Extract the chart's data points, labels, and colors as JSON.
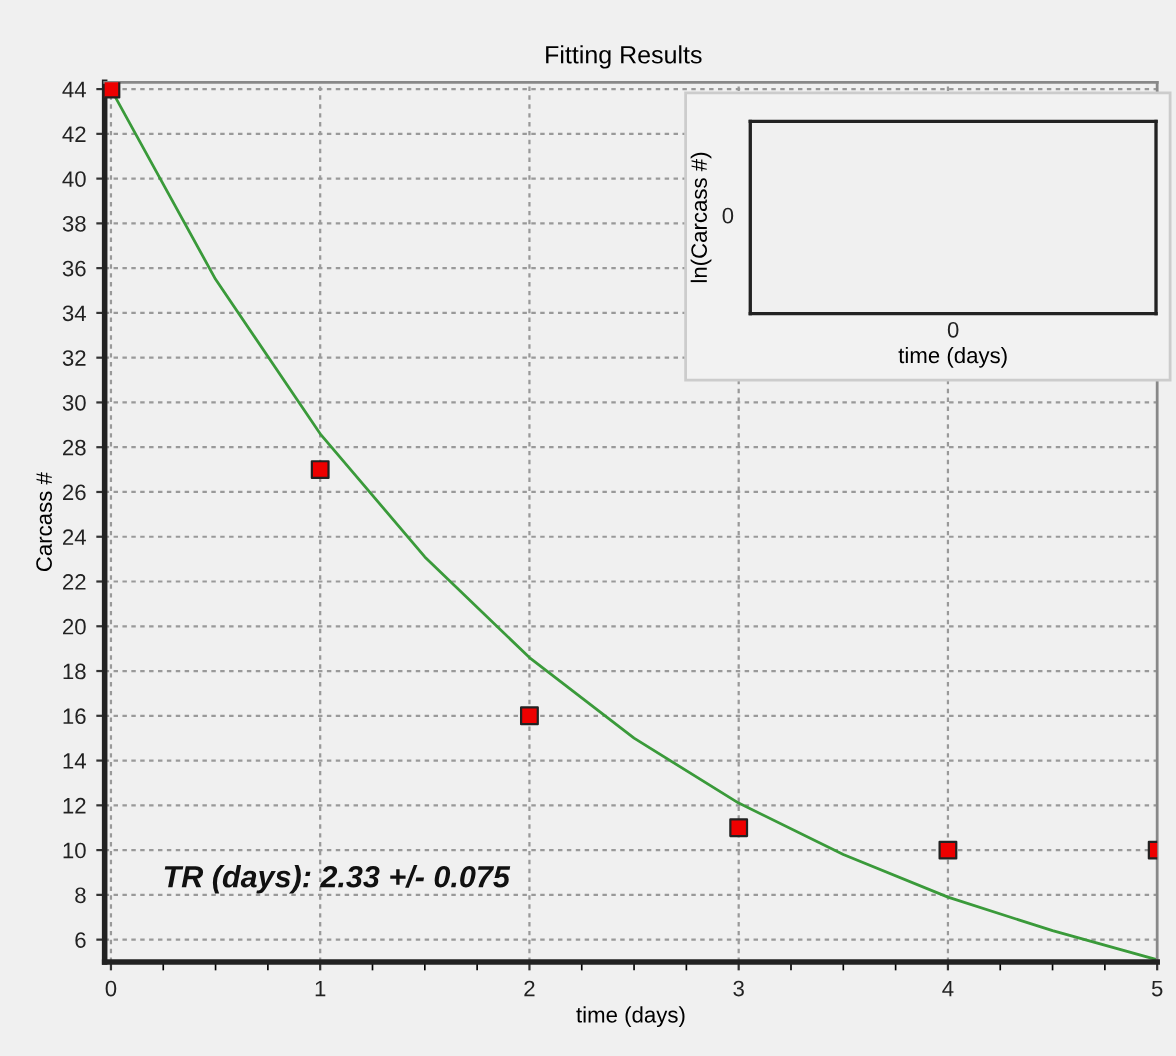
{
  "chart_data": [
    {
      "type": "scatter",
      "title": "Fitting Results",
      "xlabel": "time (days)",
      "ylabel": "Carcass #",
      "series": [
        {
          "type": "scatter",
          "color": "#ee0000",
          "marker": "square",
          "x": [
            0,
            1,
            2,
            3,
            4,
            5
          ],
          "values": [
            44,
            27,
            16,
            11,
            10,
            10
          ]
        },
        {
          "type": "line",
          "color": "#3a9a3a",
          "marker": "none",
          "line_style": "solid",
          "x": [
            0,
            0.5,
            1,
            1.5,
            2,
            2.5,
            3,
            3.5,
            4,
            4.5,
            5
          ],
          "values": [
            44,
            35.5,
            28.6,
            23.1,
            18.6,
            15.0,
            12.1,
            9.8,
            7.9,
            6.4,
            5.1
          ]
        }
      ],
      "xlim": [
        -0.03,
        5
      ],
      "ylim": [
        5,
        44.3
      ],
      "xticks": [
        0,
        1,
        2,
        3,
        4,
        5
      ],
      "yticks": [
        6,
        8,
        10,
        12,
        14,
        16,
        18,
        20,
        22,
        24,
        26,
        28,
        30,
        32,
        34,
        36,
        38,
        40,
        42,
        44
      ],
      "grid": true,
      "annotations": [
        "TR (days): 2.33 +/- 0.075"
      ]
    },
    {
      "type": "other",
      "xlabel": "time (days)",
      "ylabel": "ln(Carcass #)",
      "annotations": [
        "0",
        "0"
      ]
    }
  ]
}
